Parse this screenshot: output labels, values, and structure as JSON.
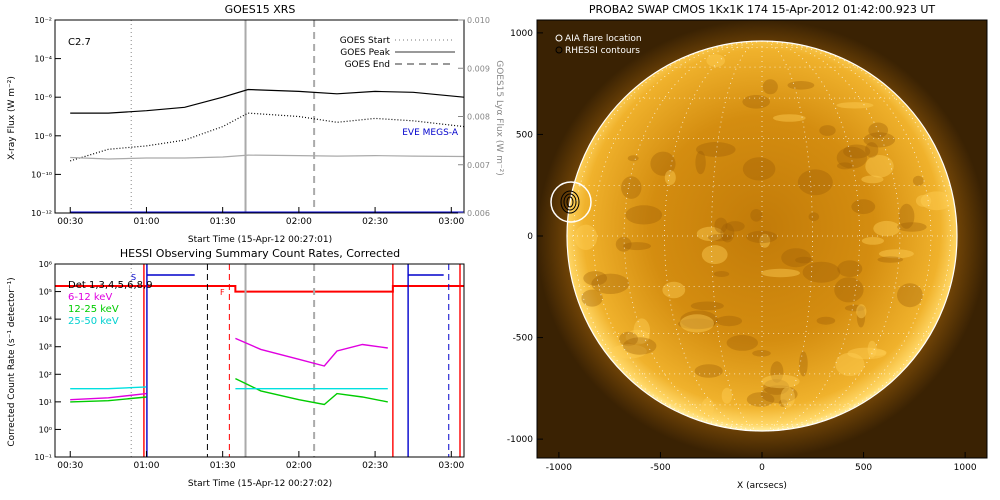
{
  "goes": {
    "title": "GOES15 XRS",
    "flare_class": "C2.7",
    "ylabel_left": "X-ray Flux (W m⁻²)",
    "ylabel_right": "GOES15 Lyα Flux (W m⁻²)",
    "xlabel": "Start Time (15-Apr-12 00:27:01)",
    "xticks": [
      "00:30",
      "01:00",
      "01:30",
      "02:00",
      "02:30",
      "03:00"
    ],
    "yticks_left": [
      "10⁻²",
      "10⁻⁴",
      "10⁻⁶",
      "10⁻⁸",
      "10⁻¹⁰",
      "10⁻¹²"
    ],
    "yticks_right": [
      "0.010",
      "0.009",
      "0.008",
      "0.007",
      "0.006"
    ],
    "legend": [
      {
        "label": "GOES Start",
        "style": "dotted"
      },
      {
        "label": "GOES Peak",
        "style": "solid"
      },
      {
        "label": "GOES End",
        "style": "dashed"
      }
    ],
    "eve_label": "EVE MEGS-A",
    "eve_color": "#0000cc"
  },
  "hessi": {
    "title": "HESSI Observing Summary Count Rates, Corrected",
    "ylabel": "Corrected Count Rate (s⁻¹ detector⁻¹)",
    "xlabel": "Start Time (15-Apr-12 00:27:02)",
    "xticks": [
      "00:30",
      "01:00",
      "01:30",
      "02:00",
      "02:30",
      "03:00"
    ],
    "yticks": [
      "10⁶",
      "10⁵",
      "10⁴",
      "10³",
      "10²",
      "10¹",
      "10⁰",
      "10⁻¹"
    ],
    "legend": [
      {
        "label": "Det 1,3,4,5,6,8,9",
        "color": "#000000"
      },
      {
        "label": "6-12 keV",
        "color": "#e000e0"
      },
      {
        "label": "12-25 keV",
        "color": "#00cc00"
      },
      {
        "label": "25-50 keV",
        "color": "#00e0e0"
      }
    ],
    "flag_s": "S",
    "flag_f": "F"
  },
  "swap": {
    "title": "PROBA2 SWAP CMOS 1Kx1K 174 15-Apr-2012 01:42:00.923 UT",
    "xlabel": "X (arcsecs)",
    "ticks": [
      "-1000",
      "-500",
      "0",
      "500",
      "1000"
    ],
    "legend": [
      {
        "label": "AIA flare location",
        "color": "#ffffff"
      },
      {
        "label": "RHESSI contours",
        "color": "#000000"
      }
    ]
  },
  "chart_data": [
    {
      "type": "line",
      "title": "GOES15 XRS",
      "xlabel": "Start Time (15-Apr-12 00:27:01)",
      "ylabel": "X-ray Flux (W m^-2)",
      "yscale": "log",
      "ylim": [
        1e-12,
        0.01
      ],
      "x": [
        "00:30",
        "00:45",
        "01:00",
        "01:15",
        "01:30",
        "01:40",
        "02:00",
        "02:15",
        "02:30",
        "02:45",
        "03:05"
      ],
      "series": [
        {
          "name": "long channel",
          "color": "#000000",
          "style": "solid",
          "values": [
            1.5e-07,
            1.5e-07,
            2e-07,
            3e-07,
            1e-06,
            2.5e-06,
            2e-06,
            1.5e-06,
            2e-06,
            1.8e-06,
            1e-06
          ]
        },
        {
          "name": "short channel",
          "color": "#000000",
          "style": "dotted",
          "values": [
            5e-10,
            2e-09,
            3e-09,
            6e-09,
            3e-08,
            1.5e-07,
            1e-07,
            5e-08,
            8e-08,
            6e-08,
            3e-08
          ]
        },
        {
          "name": "Lyα",
          "color": "#aaaaaa",
          "style": "solid",
          "axis": "right",
          "values": [
            0.00715,
            0.00712,
            0.00714,
            0.00714,
            0.00716,
            0.0072,
            0.00719,
            0.00718,
            0.00719,
            0.00718,
            0.00717
          ]
        },
        {
          "name": "EVE MEGS-A",
          "color": "#0000cc",
          "style": "solid",
          "values": [
            1e-12,
            1e-12,
            1e-12,
            1e-12,
            1e-12,
            1e-12,
            1e-12,
            1e-12,
            1e-12,
            1e-12,
            1e-12
          ]
        }
      ],
      "markers": {
        "GOES Start": "00:54",
        "GOES Peak": "01:39",
        "GOES End": "02:06"
      },
      "ylim_right": [
        0.006,
        0.01
      ]
    },
    {
      "type": "line",
      "title": "HESSI Observing Summary Count Rates, Corrected",
      "xlabel": "Start Time (15-Apr-12 00:27:02)",
      "ylabel": "Corrected Count Rate",
      "yscale": "log",
      "ylim": [
        0.1,
        1000000.0
      ],
      "x": [
        "00:30",
        "00:45",
        "01:00",
        "01:25",
        "01:35",
        "01:45",
        "02:00",
        "02:10",
        "02:15",
        "02:25",
        "02:35"
      ],
      "series": [
        {
          "name": "6-12 keV",
          "color": "#e000e0",
          "values": [
            12,
            14,
            20,
            null,
            2000,
            800,
            350,
            200,
            700,
            1200,
            900
          ]
        },
        {
          "name": "12-25 keV",
          "color": "#00cc00",
          "values": [
            10,
            11,
            15,
            null,
            70,
            25,
            12,
            8,
            20,
            15,
            10
          ]
        },
        {
          "name": "25-50 keV",
          "color": "#00e0e0",
          "values": [
            30,
            30,
            35,
            null,
            30,
            30,
            30,
            30,
            30,
            30,
            30
          ]
        }
      ]
    }
  ]
}
